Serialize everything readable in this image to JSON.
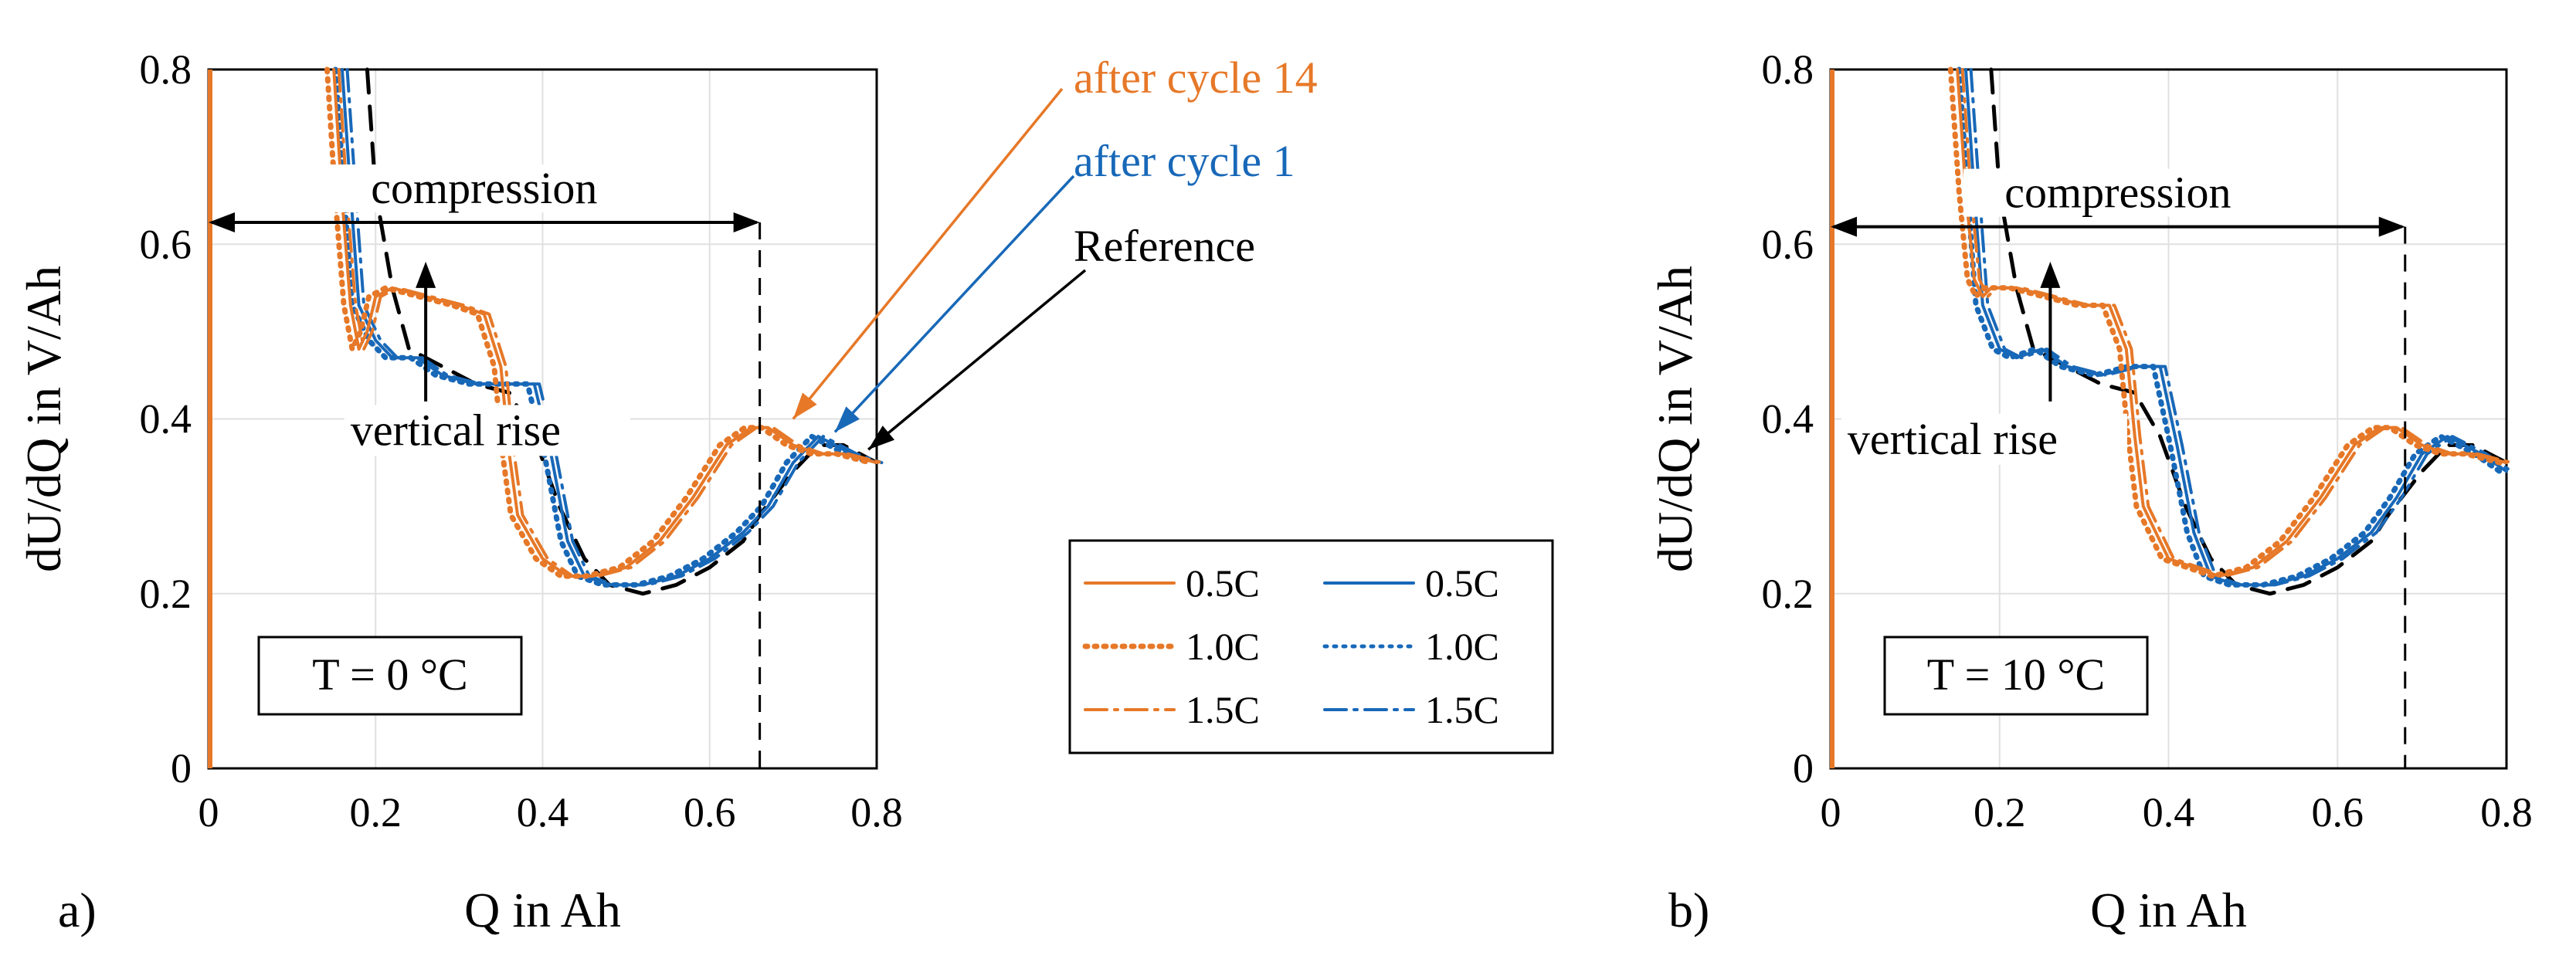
{
  "chart_data": [
    {
      "type": "line",
      "panel_label": "a)",
      "xlabel": "Q in Ah",
      "ylabel": "dU/dQ in V/Ah",
      "xlim": [
        0,
        0.8
      ],
      "ylim": [
        0,
        0.8
      ],
      "xticks": [
        "0",
        "0.2",
        "0.4",
        "0.6",
        "0.8"
      ],
      "yticks": [
        "0",
        "0.2",
        "0.4",
        "0.6",
        "0.8"
      ],
      "grid": true,
      "temperature_label": "T = 0 °C",
      "annotations": {
        "compression": "compression",
        "vertical_rise": "vertical rise",
        "after_cycle_14": "after cycle 14",
        "after_cycle_1": "after cycle 1",
        "reference": "Reference"
      },
      "series": [
        {
          "name": "Reference",
          "color": "#000000",
          "style": "dashed",
          "x": [
            0.19,
            0.2,
            0.22,
            0.24,
            0.28,
            0.32,
            0.36,
            0.39,
            0.42,
            0.45,
            0.48,
            0.52,
            0.56,
            0.6,
            0.64,
            0.66,
            0.7,
            0.73,
            0.76,
            0.78,
            0.8
          ],
          "y": [
            0.8,
            0.66,
            0.55,
            0.48,
            0.46,
            0.44,
            0.43,
            0.38,
            0.3,
            0.24,
            0.21,
            0.2,
            0.21,
            0.23,
            0.26,
            0.29,
            0.34,
            0.37,
            0.37,
            0.36,
            0.35
          ]
        },
        {
          "name": "after cycle 1 (0.5C/1.0C/1.5C)",
          "color": "#1868b8",
          "style": "solid",
          "x": [
            0.16,
            0.17,
            0.18,
            0.2,
            0.22,
            0.25,
            0.28,
            0.32,
            0.36,
            0.39,
            0.41,
            0.43,
            0.45,
            0.48,
            0.52,
            0.56,
            0.6,
            0.64,
            0.67,
            0.7,
            0.73,
            0.75,
            0.77,
            0.8
          ],
          "y": [
            0.8,
            0.66,
            0.53,
            0.49,
            0.47,
            0.47,
            0.45,
            0.44,
            0.44,
            0.44,
            0.36,
            0.26,
            0.22,
            0.21,
            0.21,
            0.22,
            0.24,
            0.27,
            0.3,
            0.35,
            0.38,
            0.37,
            0.36,
            0.35
          ]
        },
        {
          "name": "after cycle 14 (0.5C/1.0C/1.5C)",
          "color": "#e67828",
          "style": "solid",
          "x": [
            0.15,
            0.16,
            0.17,
            0.18,
            0.19,
            0.2,
            0.22,
            0.26,
            0.3,
            0.33,
            0.35,
            0.36,
            0.37,
            0.4,
            0.43,
            0.46,
            0.5,
            0.54,
            0.58,
            0.62,
            0.65,
            0.67,
            0.7,
            0.73,
            0.76,
            0.8
          ],
          "y": [
            0.8,
            0.65,
            0.53,
            0.48,
            0.5,
            0.54,
            0.55,
            0.54,
            0.53,
            0.52,
            0.46,
            0.36,
            0.29,
            0.24,
            0.22,
            0.22,
            0.23,
            0.26,
            0.31,
            0.37,
            0.39,
            0.39,
            0.37,
            0.36,
            0.36,
            0.35
          ]
        }
      ]
    },
    {
      "type": "line",
      "panel_label": "b)",
      "xlabel": "Q in Ah",
      "ylabel": "dU/dQ in V/Ah",
      "xlim": [
        0,
        0.8
      ],
      "ylim": [
        0,
        0.8
      ],
      "xticks": [
        "0",
        "0.2",
        "0.4",
        "0.6",
        "0.8"
      ],
      "yticks": [
        "0",
        "0.2",
        "0.4",
        "0.6",
        "0.8"
      ],
      "grid": true,
      "temperature_label": "T = 10 °C",
      "annotations": {
        "compression": "compression",
        "vertical_rise": "vertical rise"
      },
      "series": [
        {
          "name": "Reference",
          "color": "#000000",
          "style": "dashed",
          "x": [
            0.19,
            0.2,
            0.22,
            0.24,
            0.28,
            0.32,
            0.36,
            0.39,
            0.42,
            0.45,
            0.48,
            0.52,
            0.56,
            0.6,
            0.64,
            0.66,
            0.7,
            0.73,
            0.76,
            0.78,
            0.8
          ],
          "y": [
            0.8,
            0.66,
            0.55,
            0.48,
            0.46,
            0.44,
            0.43,
            0.38,
            0.3,
            0.24,
            0.21,
            0.2,
            0.21,
            0.23,
            0.26,
            0.29,
            0.34,
            0.37,
            0.37,
            0.36,
            0.35
          ]
        },
        {
          "name": "after cycle 1 (0.5C/1.0C/1.5C)",
          "color": "#1868b8",
          "style": "solid",
          "x": [
            0.16,
            0.17,
            0.18,
            0.2,
            0.22,
            0.25,
            0.28,
            0.32,
            0.36,
            0.39,
            0.41,
            0.43,
            0.45,
            0.48,
            0.52,
            0.56,
            0.6,
            0.64,
            0.67,
            0.7,
            0.73,
            0.75,
            0.77,
            0.8
          ],
          "y": [
            0.8,
            0.66,
            0.53,
            0.48,
            0.47,
            0.48,
            0.46,
            0.45,
            0.46,
            0.46,
            0.37,
            0.27,
            0.22,
            0.21,
            0.21,
            0.22,
            0.24,
            0.27,
            0.31,
            0.36,
            0.38,
            0.37,
            0.36,
            0.34
          ]
        },
        {
          "name": "after cycle 14 (0.5C/1.0C/1.5C)",
          "color": "#e67828",
          "style": "solid",
          "x": [
            0.15,
            0.16,
            0.17,
            0.18,
            0.19,
            0.2,
            0.22,
            0.26,
            0.3,
            0.33,
            0.35,
            0.36,
            0.37,
            0.4,
            0.43,
            0.46,
            0.5,
            0.54,
            0.58,
            0.62,
            0.65,
            0.67,
            0.7,
            0.73,
            0.76,
            0.8
          ],
          "y": [
            0.8,
            0.66,
            0.56,
            0.54,
            0.55,
            0.55,
            0.55,
            0.54,
            0.53,
            0.53,
            0.48,
            0.38,
            0.3,
            0.24,
            0.23,
            0.22,
            0.23,
            0.26,
            0.31,
            0.37,
            0.39,
            0.39,
            0.37,
            0.36,
            0.36,
            0.35
          ]
        }
      ]
    }
  ],
  "legend": {
    "rows": [
      {
        "label_orange": "0.5C",
        "label_blue": "0.5C",
        "style": "solid"
      },
      {
        "label_orange": "1.0C",
        "label_blue": "1.0C",
        "style": "dotted"
      },
      {
        "label_orange": "1.5C",
        "label_blue": "1.5C",
        "style": "dashdot"
      }
    ],
    "colors": {
      "orange": "#e67828",
      "blue": "#1868b8"
    }
  }
}
